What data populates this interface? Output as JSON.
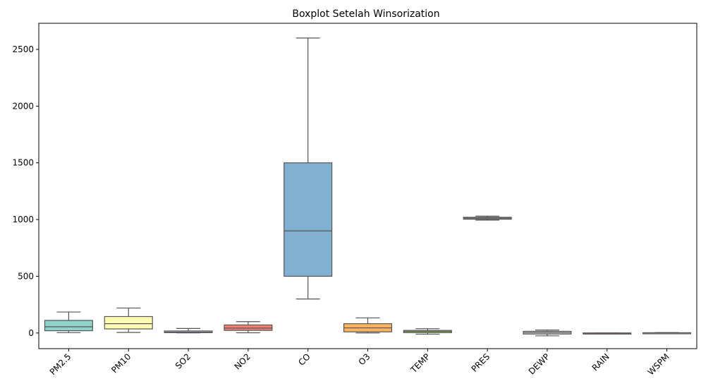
{
  "chart_data": {
    "type": "box",
    "title": "Boxplot Setelah Winsorization",
    "xlabel": "",
    "ylabel": "",
    "ylim": [
      -138,
      2730
    ],
    "yticks": [
      0,
      500,
      1000,
      1500,
      2000,
      2500
    ],
    "categories": [
      "PM2.5",
      "PM10",
      "SO2",
      "NO2",
      "CO",
      "O3",
      "TEMP",
      "PRES",
      "DEWP",
      "RAIN",
      "WSPM"
    ],
    "boxes": [
      {
        "label": "PM2.5",
        "whisker_low": 3,
        "q1": 20,
        "median": 55,
        "q3": 111,
        "whisker_high": 185,
        "color": "#8dd3c7"
      },
      {
        "label": "PM10",
        "whisker_low": 5,
        "q1": 36,
        "median": 82,
        "q3": 145,
        "whisker_high": 220,
        "color": "#ffffb3"
      },
      {
        "label": "SO2",
        "whisker_low": 1,
        "q1": 3,
        "median": 7,
        "q3": 18,
        "whisker_high": 40,
        "color": "#bebada"
      },
      {
        "label": "NO2",
        "whisker_low": 2,
        "q1": 23,
        "median": 43,
        "q3": 71,
        "whisker_high": 100,
        "color": "#fb8072"
      },
      {
        "label": "CO",
        "whisker_low": 300,
        "q1": 500,
        "median": 900,
        "q3": 1500,
        "whisker_high": 2600,
        "color": "#80b1d3"
      },
      {
        "label": "O3",
        "whisker_low": 0,
        "q1": 10,
        "median": 45,
        "q3": 82,
        "whisker_high": 133,
        "color": "#fdb462"
      },
      {
        "label": "TEMP",
        "whisker_low": -10,
        "q1": 3,
        "median": 14,
        "q3": 23,
        "whisker_high": 38,
        "color": "#b3de69"
      },
      {
        "label": "PRES",
        "whisker_low": 995,
        "q1": 1003,
        "median": 1012,
        "q3": 1020,
        "whisker_high": 1030,
        "color": "#fccde5"
      },
      {
        "label": "DEWP",
        "whisker_low": -25,
        "q1": -9,
        "median": 3,
        "q3": 15,
        "whisker_high": 26,
        "color": "#d9d9d9"
      },
      {
        "label": "RAIN",
        "whisker_low": 0,
        "q1": 0,
        "median": 0,
        "q3": 0,
        "whisker_high": 0,
        "color": "#bc80bd"
      },
      {
        "label": "WSPM",
        "whisker_low": 0,
        "q1": 1,
        "median": 1.5,
        "q3": 2.3,
        "whisker_high": 4,
        "color": "#ccebc5"
      }
    ],
    "line_color": "#555555",
    "grid": false,
    "legend": false
  }
}
